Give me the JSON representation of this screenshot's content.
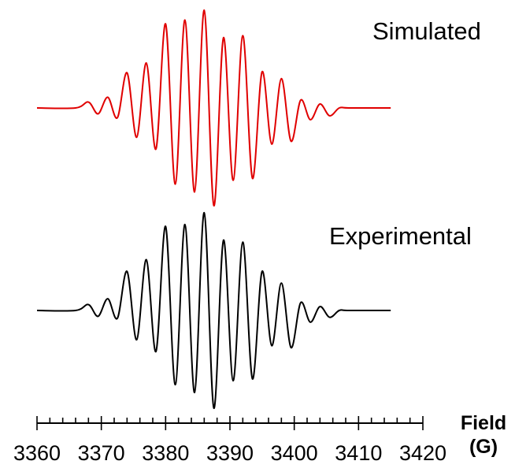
{
  "chart_data": {
    "type": "line",
    "xlabel": "Field",
    "xunit": "(G)",
    "xlim": [
      3360,
      3420
    ],
    "x_ticks": [
      3360,
      3370,
      3380,
      3390,
      3400,
      3410,
      3420
    ],
    "x_minor_step": 2,
    "series": [
      {
        "name": "Simulated",
        "color": "#e00000",
        "x": [
          3360,
          3366,
          3368,
          3369.5,
          3371,
          3372.5,
          3374,
          3375.5,
          3377,
          3378.5,
          3380,
          3381.5,
          3383,
          3384.5,
          3386,
          3387.5,
          3389,
          3390.5,
          3392,
          3393.5,
          3395,
          3396.5,
          3398,
          3399.5,
          3401,
          3402.5,
          3404,
          3405.5,
          3407,
          3408.5,
          3415
        ],
        "y": [
          0,
          0,
          0.06,
          -0.06,
          0.11,
          -0.1,
          0.36,
          -0.3,
          0.46,
          -0.42,
          0.86,
          -0.78,
          0.9,
          -0.86,
          1.0,
          -1.0,
          0.72,
          -0.74,
          0.74,
          -0.72,
          0.37,
          -0.37,
          0.3,
          -0.34,
          0.08,
          -0.12,
          0.04,
          -0.08,
          0,
          0,
          0
        ]
      },
      {
        "name": "Experimental",
        "color": "#000000",
        "x": [
          3360,
          3366,
          3368,
          3369.5,
          3371,
          3372.5,
          3374,
          3375.5,
          3377,
          3378.5,
          3380,
          3381.5,
          3383,
          3384.5,
          3386,
          3387.5,
          3389,
          3390.5,
          3392,
          3393.5,
          3395,
          3396.5,
          3398,
          3399.5,
          3401,
          3402.5,
          3404,
          3405.5,
          3407,
          3408.5,
          3415
        ],
        "y": [
          0,
          0,
          0.06,
          -0.06,
          0.12,
          -0.08,
          0.4,
          -0.3,
          0.52,
          -0.42,
          0.86,
          -0.76,
          0.88,
          -0.84,
          1.0,
          -1.0,
          0.72,
          -0.72,
          0.7,
          -0.7,
          0.4,
          -0.36,
          0.28,
          -0.38,
          0.08,
          -0.12,
          0.04,
          -0.07,
          0,
          0,
          0
        ]
      }
    ]
  }
}
